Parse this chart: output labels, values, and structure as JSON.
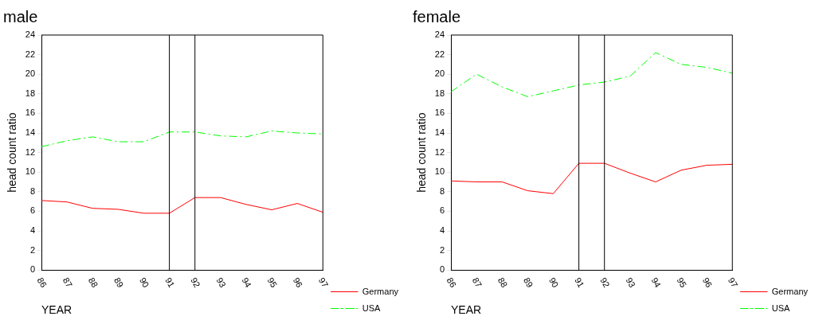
{
  "chart_data": [
    {
      "type": "line",
      "title": "male",
      "xlabel": "YEAR",
      "ylabel": "head count ratio",
      "x": [
        86,
        87,
        88,
        89,
        90,
        91,
        92,
        93,
        94,
        95,
        96,
        97
      ],
      "xlim": [
        86,
        97
      ],
      "xticks": [
        86,
        87,
        88,
        89,
        90,
        91,
        92,
        93,
        94,
        95,
        96,
        97
      ],
      "ylim": [
        0,
        24
      ],
      "yticks": [
        0,
        2,
        4,
        6,
        8,
        10,
        12,
        14,
        16,
        18,
        20,
        22,
        24
      ],
      "grid": false,
      "legend": "right",
      "marker": "none",
      "series": [
        {
          "name": "Germany",
          "color": "#ff0000",
          "line_style": "solid",
          "values": [
            7.1,
            6.95,
            6.3,
            6.2,
            5.8,
            5.8,
            7.4,
            7.4,
            6.7,
            6.15,
            6.8,
            5.9
          ]
        },
        {
          "name": "USA",
          "color": "#00ff00",
          "line_style": "dashed",
          "values": [
            12.6,
            13.2,
            13.6,
            13.1,
            13.1,
            14.1,
            14.1,
            13.7,
            13.6,
            14.2,
            14.0,
            13.9
          ]
        }
      ],
      "ref_lines": [
        {
          "axis": "x",
          "value": 91,
          "color": "#000000"
        },
        {
          "axis": "x",
          "value": 92,
          "color": "#000000"
        }
      ]
    },
    {
      "type": "line",
      "title": "female",
      "xlabel": "YEAR",
      "ylabel": "head count ratio",
      "x": [
        86,
        87,
        88,
        89,
        90,
        91,
        92,
        93,
        94,
        95,
        96,
        97
      ],
      "xlim": [
        86,
        97
      ],
      "xticks": [
        86,
        87,
        88,
        89,
        90,
        91,
        92,
        93,
        94,
        95,
        96,
        97
      ],
      "ylim": [
        0,
        24
      ],
      "yticks": [
        0,
        2,
        4,
        6,
        8,
        10,
        12,
        14,
        16,
        18,
        20,
        22,
        24
      ],
      "grid": false,
      "legend": "right",
      "marker": "none",
      "series": [
        {
          "name": "Germany",
          "color": "#ff0000",
          "line_style": "solid",
          "values": [
            9.1,
            9.0,
            9.0,
            8.1,
            7.8,
            10.9,
            10.9,
            9.9,
            9.0,
            10.2,
            10.7,
            10.8
          ]
        },
        {
          "name": "USA",
          "color": "#00ff00",
          "line_style": "dashed",
          "values": [
            18.2,
            20.0,
            18.7,
            17.7,
            18.3,
            18.9,
            19.2,
            19.8,
            22.2,
            21.0,
            20.7,
            20.1
          ]
        }
      ],
      "ref_lines": [
        {
          "axis": "x",
          "value": 91,
          "color": "#000000"
        },
        {
          "axis": "x",
          "value": 92,
          "color": "#000000"
        }
      ]
    }
  ]
}
